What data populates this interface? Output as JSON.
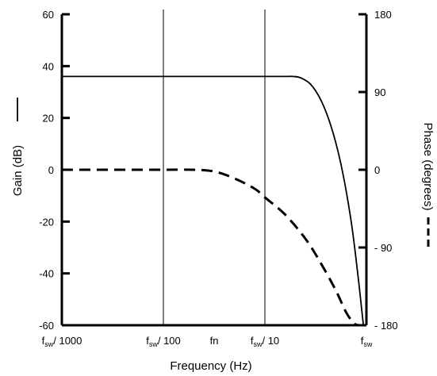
{
  "chart_data": {
    "type": "line",
    "xlabel": "Frequency (Hz)",
    "ylabel_left": "Gain (dB)",
    "ylabel_right": "Phase (degrees)",
    "x_scale": "log",
    "x_ticks": [
      {
        "pos": 0,
        "main": "f",
        "sub": "sw",
        "suffix": "/ 1000"
      },
      {
        "pos": 1,
        "main": "f",
        "sub": "sw",
        "suffix": "/ 100"
      },
      {
        "pos": 1.5,
        "main": "fn",
        "sub": "",
        "suffix": ""
      },
      {
        "pos": 2,
        "main": "f",
        "sub": "sw",
        "suffix": "/ 10"
      },
      {
        "pos": 3,
        "main": "f",
        "sub": "sw",
        "suffix": ""
      }
    ],
    "x_gridlines": [
      1,
      2
    ],
    "ylim_left": [
      -60,
      60
    ],
    "yticks_left": [
      "60",
      "40",
      "20",
      "0",
      "-20",
      "-40",
      "-60"
    ],
    "ylim_right": [
      -180,
      180
    ],
    "yticks_right": [
      "180",
      "90",
      "0",
      "- 90",
      "- 180"
    ],
    "series": [
      {
        "name": "Gain",
        "axis": "left",
        "style": "solid",
        "x": [
          0,
          0.5,
          1,
          1.5,
          2,
          2.2,
          2.28,
          2.35,
          2.45,
          2.55,
          2.65,
          2.75,
          2.85,
          2.92,
          2.97
        ],
        "y": [
          36,
          36,
          36,
          36,
          36,
          36,
          36,
          35.5,
          33,
          27,
          17,
          2,
          -20,
          -42,
          -60
        ]
      },
      {
        "name": "Phase",
        "axis": "right",
        "style": "dashed",
        "x": [
          0,
          0.5,
          1,
          1.3,
          1.5,
          1.7,
          1.9,
          2,
          2.2,
          2.4,
          2.55,
          2.7,
          2.8,
          2.88,
          2.93
        ],
        "y": [
          0,
          0,
          0,
          0,
          -2,
          -10,
          -22,
          -32,
          -52,
          -80,
          -108,
          -140,
          -165,
          -178,
          -180
        ]
      }
    ]
  }
}
